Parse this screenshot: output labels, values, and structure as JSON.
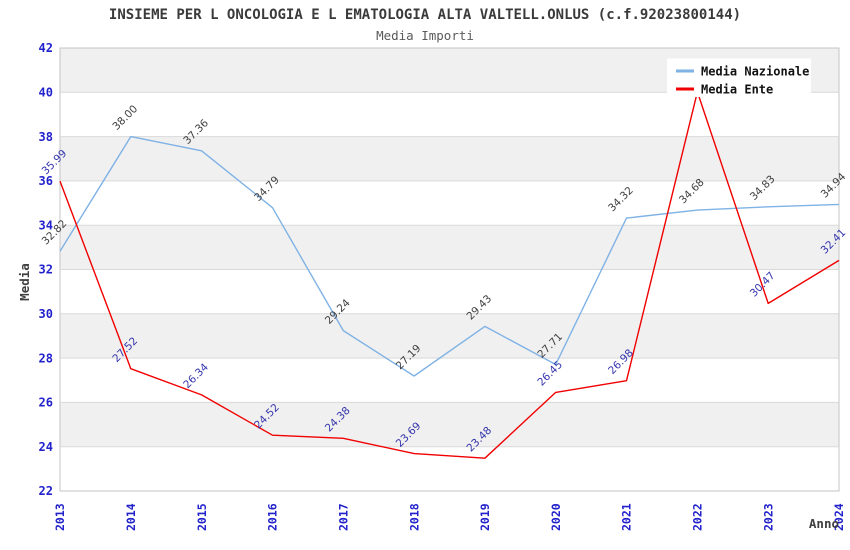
{
  "page": {
    "background": "#FFFFFF"
  },
  "chart_data": {
    "type": "line",
    "title": "INSIEME PER L ONCOLOGIA E L EMATOLOGIA ALTA VALTELL.ONLUS (c.f.92023800144)",
    "subtitle": "Media Importi",
    "xlabel": "Anno",
    "ylabel": "Media",
    "x": [
      "2013",
      "2014",
      "2015",
      "2016",
      "2017",
      "2018",
      "2019",
      "2020",
      "2021",
      "2022",
      "2023",
      "2024"
    ],
    "ylim": [
      22,
      42
    ],
    "ytick_step": 2,
    "grid": "horizontal gridlines with alternating gray bands",
    "legend_position": "top-right",
    "series": [
      {
        "name": "Media Nazionale",
        "color": "#7FB2E5",
        "label_color": "#3F3F3F",
        "values": [
          32.82,
          38.0,
          37.36,
          34.79,
          29.24,
          27.19,
          29.43,
          27.71,
          34.32,
          34.68,
          34.83,
          34.94
        ]
      },
      {
        "name": "Media Ente",
        "color": "#F00000",
        "label_color": "#3434AD",
        "values": [
          35.99,
          27.52,
          26.34,
          24.52,
          24.38,
          23.69,
          23.48,
          26.45,
          26.98,
          40.02,
          30.47,
          32.41
        ],
        "hidden_label_indices": [
          9
        ],
        "note": "2022 peak and its label are hidden behind the legend; 2022 value estimated from line slopes (~40.0)"
      }
    ],
    "styles": {
      "band_fill": "#F0F0F0",
      "gridline_color": "#D9D9D9",
      "frame_color": "#C5C5C5",
      "tick_label_color": "#2222CC",
      "title_color": "#3A3A3A",
      "subtitle_color": "#5A5A5A",
      "legend_text_color": "#111111",
      "legend_background": "#FFFFFF"
    }
  }
}
